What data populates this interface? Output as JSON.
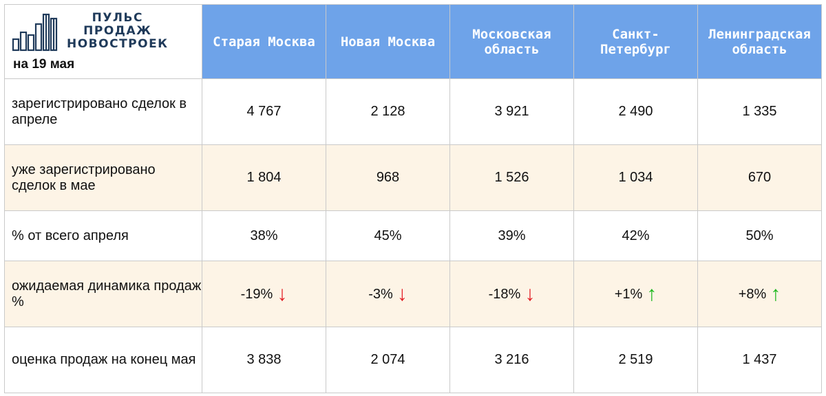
{
  "header": {
    "logo_lines": [
      "ПУЛЬС",
      "ПРОДАЖ",
      "НОВОСТРОЕК"
    ],
    "date": "на 19 мая",
    "regions": [
      "Старая Москва",
      "Новая Москва",
      "Московская область",
      "Санкт-Петербург",
      "Ленинградская область"
    ]
  },
  "rows": [
    {
      "label": "зарегистрировано сделок в апреле",
      "values": [
        "4 767",
        "2 128",
        "3 921",
        "2 490",
        "1 335"
      ]
    },
    {
      "label": "уже зарегистрировано сделок в мае",
      "values": [
        "1 804",
        "968",
        "1 526",
        "1 034",
        "670"
      ]
    },
    {
      "label": "% от всего апреля",
      "values": [
        "38%",
        "45%",
        "39%",
        "42%",
        "50%"
      ]
    },
    {
      "label": "ожидаемая динамика продаж %",
      "values": [
        "-19%",
        "-3%",
        "-18%",
        "+1%",
        "+8%"
      ],
      "arrows": [
        "↓",
        "↓",
        "↓",
        "↑",
        "↑"
      ],
      "arrow_directions": [
        "down",
        "down",
        "down",
        "up",
        "up"
      ]
    },
    {
      "label": "оценка продаж на конец мая",
      "values": [
        "3 838",
        "2 074",
        "3 216",
        "2 519",
        "1 437"
      ]
    }
  ],
  "colors": {
    "header_bg": "#6ea3e9",
    "alt_row_bg": "#fdf4e6",
    "down_arrow": "#e31e24",
    "up_arrow": "#1fb81f",
    "logo": "#1f3a5a"
  },
  "icons": {
    "logo": "city-buildings-bars-icon",
    "down": "arrow-down-icon",
    "up": "arrow-up-icon"
  }
}
